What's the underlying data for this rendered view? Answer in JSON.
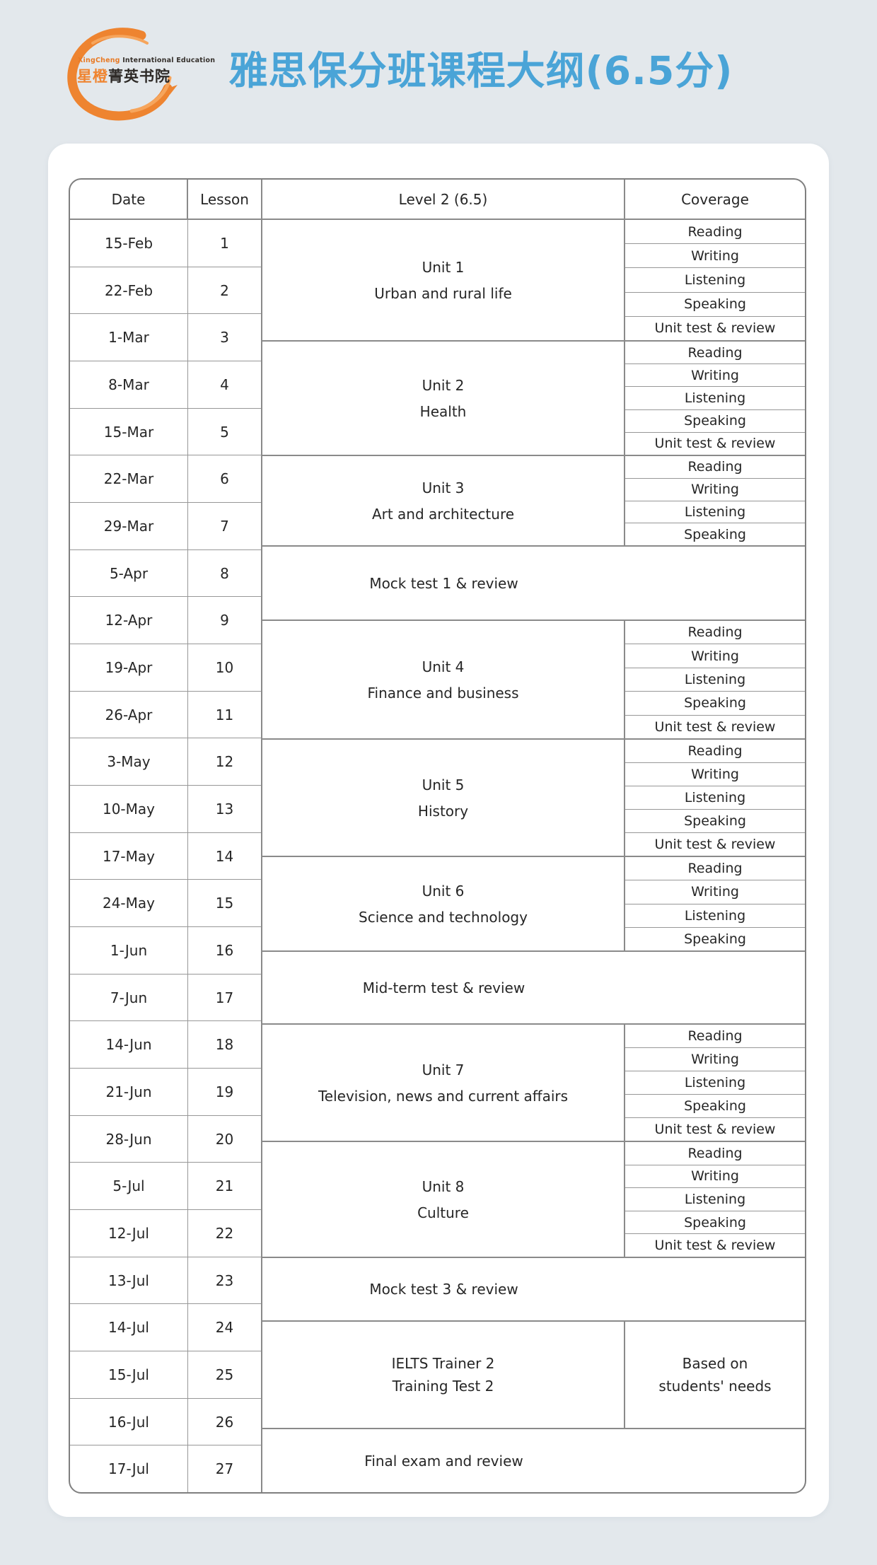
{
  "logo": {
    "english_orange": "XingCheng",
    "english_dark": " International Education",
    "brand_orange": "星橙",
    "brand_dark": "菁英书院"
  },
  "header": {
    "title": "雅思保分班课程大纲(6.5分)"
  },
  "colors": {
    "title_blue": "#4aa4d7",
    "logo_orange": "#ef8430",
    "page_background": "#e3e8ec",
    "table_border": "#8a8a8a"
  },
  "table": {
    "headers": [
      "Date",
      "Lesson",
      "Level 2 (6.5)",
      "Coverage"
    ],
    "schedule": [
      {
        "date": "15-Feb",
        "lesson": "1"
      },
      {
        "date": "22-Feb",
        "lesson": "2"
      },
      {
        "date": "1-Mar",
        "lesson": "3"
      },
      {
        "date": "8-Mar",
        "lesson": "4"
      },
      {
        "date": "15-Mar",
        "lesson": "5"
      },
      {
        "date": "22-Mar",
        "lesson": "6"
      },
      {
        "date": "29-Mar",
        "lesson": "7"
      },
      {
        "date": "5-Apr",
        "lesson": "8"
      },
      {
        "date": "12-Apr",
        "lesson": "9"
      },
      {
        "date": "19-Apr",
        "lesson": "10"
      },
      {
        "date": "26-Apr",
        "lesson": "11"
      },
      {
        "date": "3-May",
        "lesson": "12"
      },
      {
        "date": "10-May",
        "lesson": "13"
      },
      {
        "date": "17-May",
        "lesson": "14"
      },
      {
        "date": "24-May",
        "lesson": "15"
      },
      {
        "date": "1-Jun",
        "lesson": "16"
      },
      {
        "date": "7-Jun",
        "lesson": "17"
      },
      {
        "date": "14-Jun",
        "lesson": "18"
      },
      {
        "date": "21-Jun",
        "lesson": "19"
      },
      {
        "date": "28-Jun",
        "lesson": "20"
      },
      {
        "date": "5-Jul",
        "lesson": "21"
      },
      {
        "date": "12-Jul",
        "lesson": "22"
      },
      {
        "date": "13-Jul",
        "lesson": "23"
      },
      {
        "date": "14-Jul",
        "lesson": "24"
      },
      {
        "date": "15-Jul",
        "lesson": "25"
      },
      {
        "date": "16-Jul",
        "lesson": "26"
      },
      {
        "date": "17-Jul",
        "lesson": "27"
      }
    ],
    "blocks": [
      {
        "kind": "unit",
        "title": "Unit 1",
        "subtitle": "Urban and rural life",
        "coverage": [
          "Reading",
          "Writing",
          "Listening",
          "Speaking",
          "Unit test & review"
        ]
      },
      {
        "kind": "unit",
        "title": "Unit 2",
        "subtitle": "Health",
        "coverage": [
          "Reading",
          "Writing",
          "Listening",
          "Speaking",
          "Unit test & review"
        ]
      },
      {
        "kind": "unit",
        "title": "Unit 3",
        "subtitle": "Art and architecture",
        "coverage": [
          "Reading",
          "Writing",
          "Listening",
          "Speaking"
        ]
      },
      {
        "kind": "merged",
        "label": "Mock test 1 & review"
      },
      {
        "kind": "unit",
        "title": "Unit 4",
        "subtitle": "Finance and business",
        "coverage": [
          "Reading",
          "Writing",
          "Listening",
          "Speaking",
          "Unit test & review"
        ]
      },
      {
        "kind": "unit",
        "title": "Unit 5",
        "subtitle": "History",
        "coverage": [
          "Reading",
          "Writing",
          "Listening",
          "Speaking",
          "Unit test & review"
        ]
      },
      {
        "kind": "unit",
        "title": "Unit 6",
        "subtitle": "Science and technology",
        "coverage": [
          "Reading",
          "Writing",
          "Listening",
          "Speaking"
        ]
      },
      {
        "kind": "merged",
        "label": "Mid-term test & review"
      },
      {
        "kind": "unit",
        "title": "Unit 7",
        "subtitle": "Television, news and current affairs",
        "coverage": [
          "Reading",
          "Writing",
          "Listening",
          "Speaking",
          "Unit test & review"
        ]
      },
      {
        "kind": "unit",
        "title": "Unit 8",
        "subtitle": "Culture",
        "coverage": [
          "Reading",
          "Writing",
          "Listening",
          "Speaking",
          "Unit test & review"
        ]
      },
      {
        "kind": "merged",
        "label": "Mock test 3 & review"
      },
      {
        "kind": "split",
        "left_lines": [
          "IELTS Trainer 2",
          "Training Test 2"
        ],
        "right_lines": [
          "Based on",
          "students' needs"
        ]
      },
      {
        "kind": "merged",
        "label": "Final exam and review"
      }
    ]
  }
}
